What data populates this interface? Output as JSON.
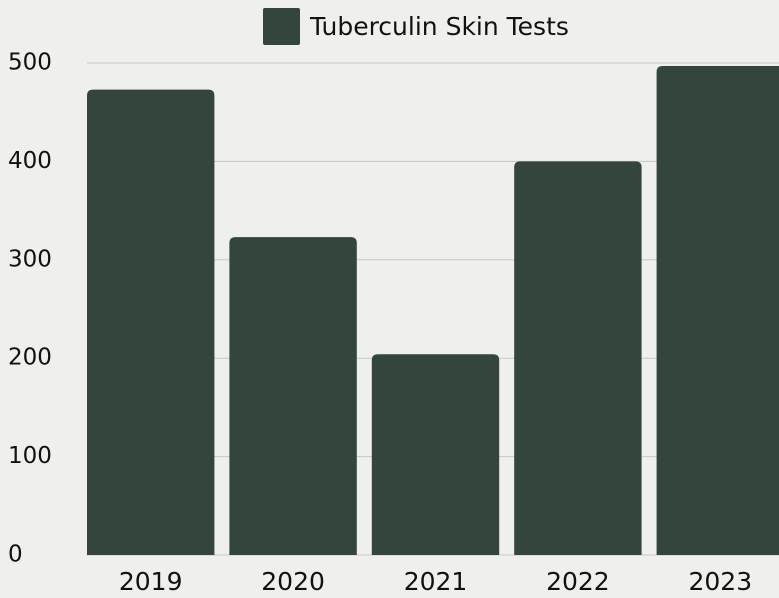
{
  "chart_data": {
    "type": "bar",
    "legend": "Tuberculin Skin Tests",
    "categories": [
      "2019",
      "2020",
      "2021",
      "2022",
      "2023"
    ],
    "values": [
      473,
      323,
      204,
      400,
      497
    ],
    "color": "#34453d",
    "ylim": [
      0,
      500
    ],
    "yticks": [
      0,
      100,
      200,
      300,
      400,
      500
    ],
    "grid": true
  }
}
